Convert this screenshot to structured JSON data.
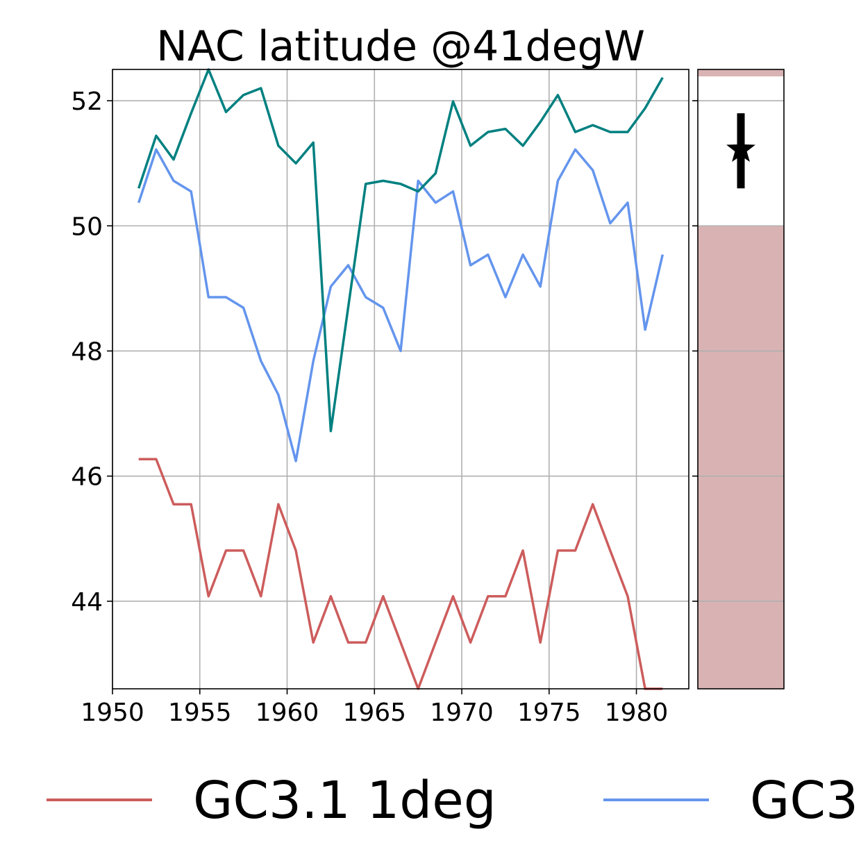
{
  "chart_data": {
    "type": "line",
    "title": "NAC latitude @41degW",
    "xlabel": "",
    "ylabel": "",
    "xlim": [
      1950,
      1983
    ],
    "ylim": [
      42.6,
      52.5
    ],
    "xticks": [
      1950,
      1955,
      1960,
      1965,
      1970,
      1975,
      1980
    ],
    "yticks": [
      44,
      46,
      48,
      50,
      52
    ],
    "grid": true,
    "x": [
      1951.5,
      1952.5,
      1953.5,
      1954.5,
      1955.5,
      1956.5,
      1957.5,
      1958.5,
      1959.5,
      1960.5,
      1961.5,
      1962.5,
      1963.5,
      1964.5,
      1965.5,
      1966.5,
      1967.5,
      1968.5,
      1969.5,
      1970.5,
      1971.5,
      1972.5,
      1973.5,
      1974.5,
      1975.5,
      1976.5,
      1977.5,
      1978.5,
      1979.5,
      1980.5,
      1981.5
    ],
    "series": [
      {
        "name": "GC3.1 1deg",
        "color": "#cd5c5c",
        "values": [
          46.27,
          46.27,
          45.55,
          45.55,
          44.08,
          44.81,
          44.81,
          44.08,
          45.55,
          44.81,
          43.34,
          44.08,
          43.34,
          43.34,
          44.08,
          43.34,
          42.6,
          43.34,
          44.08,
          43.34,
          44.08,
          44.08,
          44.81,
          43.34,
          44.81,
          44.81,
          45.55,
          44.81,
          44.08,
          42.6,
          42.6
        ]
      },
      {
        "name": "GC3",
        "color": "#6495ed",
        "values": [
          50.37,
          51.22,
          50.72,
          50.55,
          48.86,
          48.86,
          48.69,
          47.84,
          47.3,
          46.24,
          47.84,
          49.03,
          49.37,
          48.86,
          48.69,
          48.0,
          50.72,
          50.37,
          50.55,
          49.37,
          49.54,
          48.86,
          49.54,
          49.03,
          50.72,
          51.22,
          50.89,
          50.04,
          50.37,
          48.34,
          49.54
        ]
      },
      {
        "name": "",
        "color": "#008080",
        "values": [
          50.6,
          51.44,
          51.06,
          51.8,
          52.5,
          51.82,
          52.09,
          52.2,
          51.28,
          51.0,
          51.33,
          46.72,
          48.7,
          50.67,
          50.72,
          50.67,
          50.55,
          50.84,
          51.99,
          51.28,
          51.5,
          51.55,
          51.28,
          51.66,
          52.09,
          51.5,
          51.61,
          51.5,
          51.5,
          51.88,
          52.37
        ]
      }
    ],
    "side_panel": {
      "band_upper": [
        52.4,
        52.5
      ],
      "band_lower": [
        42.6,
        50.0
      ],
      "band_color": "#d9b3b3",
      "marker": "star",
      "marker_value": 51.22,
      "error_range": [
        50.6,
        51.8
      ]
    },
    "legend": {
      "placement": "bottom",
      "entries": [
        "GC3.1 1deg",
        "GC3"
      ]
    }
  }
}
